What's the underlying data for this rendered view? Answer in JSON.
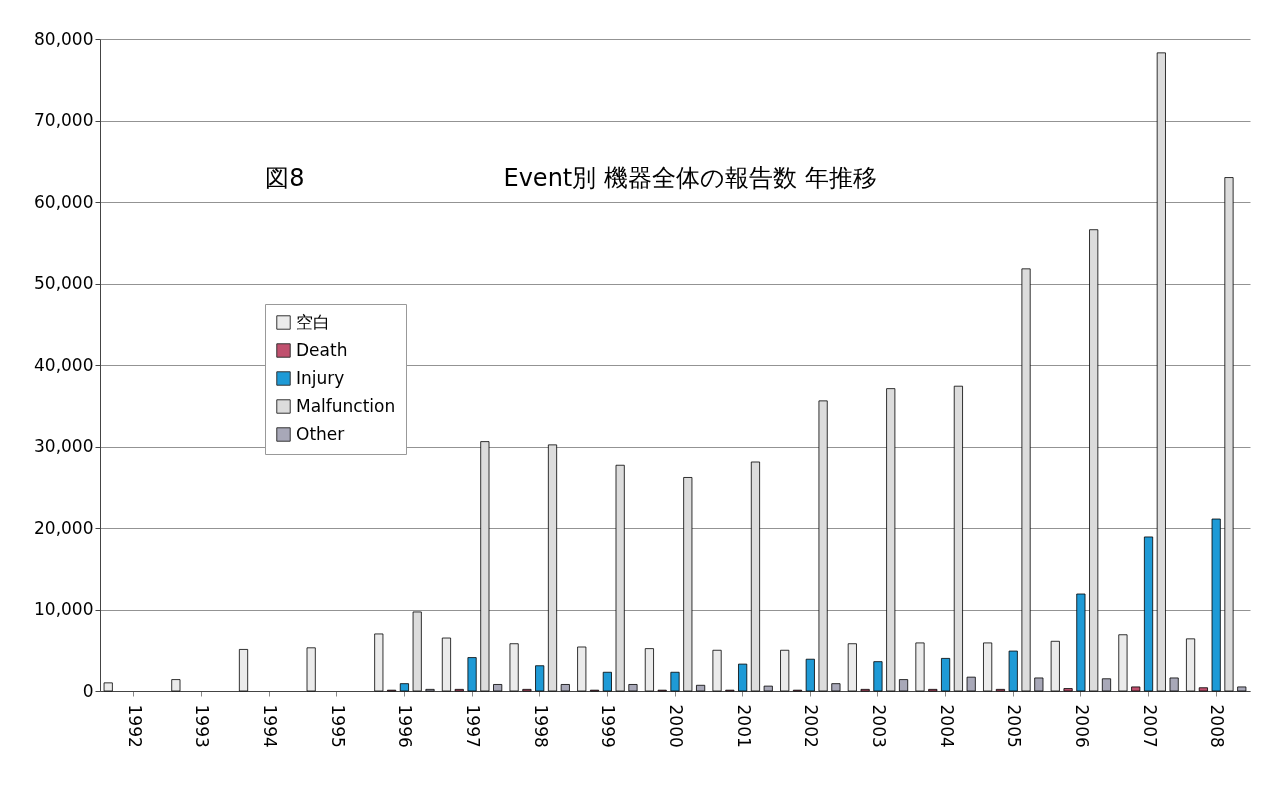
{
  "chart_data": {
    "type": "bar",
    "title": "Event別 機器全体の報告数 年推移",
    "annotations": [
      "図8"
    ],
    "categories": [
      "1992",
      "1993",
      "1994",
      "1995",
      "1996",
      "1997",
      "1998",
      "1999",
      "2000",
      "2001",
      "2002",
      "2003",
      "2004",
      "2005",
      "2006",
      "2007",
      "2008"
    ],
    "series": [
      {
        "name": "空白",
        "color": "#ebebeb",
        "values": [
          1000,
          1400,
          5100,
          5300,
          7000,
          6500,
          5800,
          5400,
          5200,
          5000,
          5000,
          5800,
          5900,
          5900,
          6100,
          6900,
          6400
        ]
      },
      {
        "name": "Death",
        "color": "#c0506e",
        "values": [
          null,
          null,
          null,
          null,
          100,
          200,
          200,
          100,
          100,
          100,
          100,
          200,
          200,
          200,
          300,
          500,
          400
        ]
      },
      {
        "name": "Injury",
        "color": "#1e9ad6",
        "values": [
          null,
          null,
          null,
          null,
          900,
          4100,
          3100,
          2300,
          2300,
          3300,
          3900,
          3600,
          4000,
          4900,
          11900,
          18900,
          21100
        ]
      },
      {
        "name": "Malfunction",
        "color": "#dcdcdc",
        "values": [
          null,
          null,
          null,
          null,
          9700,
          30600,
          30200,
          27700,
          26200,
          28100,
          35600,
          37100,
          37400,
          51800,
          56600,
          78300,
          63000
        ]
      },
      {
        "name": "Other",
        "color": "#a8a8b8",
        "values": [
          null,
          null,
          null,
          null,
          200,
          800,
          800,
          800,
          700,
          600,
          900,
          1400,
          1700,
          1600,
          1500,
          1600,
          500
        ]
      }
    ],
    "ylim": [
      0,
      80000
    ],
    "yticks": [
      {
        "value": 0,
        "label": "0"
      },
      {
        "value": 10000,
        "label": "10,000"
      },
      {
        "value": 20000,
        "label": "20,000"
      },
      {
        "value": 30000,
        "label": "30,000"
      },
      {
        "value": 40000,
        "label": "40,000"
      },
      {
        "value": 50000,
        "label": "50,000"
      },
      {
        "value": 60000,
        "label": "60,000"
      },
      {
        "value": 70000,
        "label": "70,000"
      },
      {
        "value": 80000,
        "label": "80,000"
      }
    ],
    "grid": "y",
    "legend": "left"
  }
}
